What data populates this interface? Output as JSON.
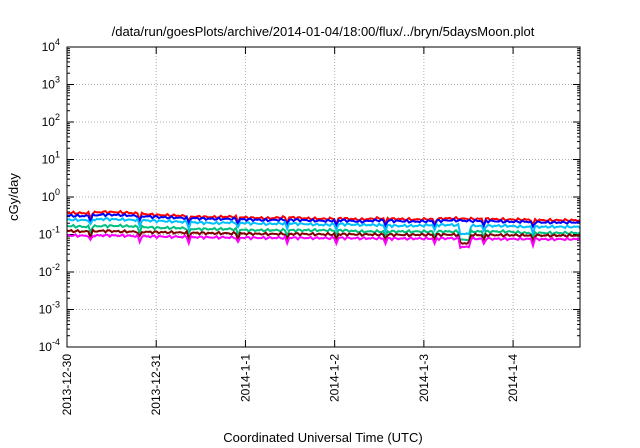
{
  "chart_data": {
    "type": "line",
    "title": "/data/run/goesPlots/archive/2014-01-04/18:00/flux/../bryn/5daysMoon.plot",
    "xlabel": "Coordinated Universal Time (UTC)",
    "ylabel": "cGy/day",
    "yscale": "log",
    "ylim": [
      0.0001,
      10000
    ],
    "y_ticks": [
      {
        "base": "10",
        "exp": "-4",
        "value": 0.0001
      },
      {
        "base": "10",
        "exp": "-3",
        "value": 0.001
      },
      {
        "base": "10",
        "exp": "-2",
        "value": 0.01
      },
      {
        "base": "10",
        "exp": "-1",
        "value": 0.1
      },
      {
        "base": "10",
        "exp": "0",
        "value": 1
      },
      {
        "base": "10",
        "exp": "1",
        "value": 10
      },
      {
        "base": "10",
        "exp": "2",
        "value": 100
      },
      {
        "base": "10",
        "exp": "3",
        "value": 1000
      },
      {
        "base": "10",
        "exp": "4",
        "value": 10000
      }
    ],
    "x_ticks": [
      "2013-12-30",
      "2013-12-31",
      "2014-1-1",
      "2014-1-2",
      "2014-1-3",
      "2014-1-4"
    ],
    "xlim": [
      "2013-12-30 00:00",
      "2014-01-04 18:00"
    ],
    "grid": true,
    "series": [
      {
        "color": "#ff0000",
        "values": [
          0.38,
          0.37,
          0.4,
          0.39,
          0.36,
          0.33,
          0.32,
          0.3,
          0.29,
          0.3,
          0.28,
          0.27,
          0.29,
          0.27,
          0.26,
          0.27,
          0.25,
          0.27,
          0.26,
          0.25,
          0.26,
          0.27,
          0.26,
          0.26,
          0.25,
          0.25,
          0.24,
          0.24,
          0.24
        ]
      },
      {
        "color": "#0000ff",
        "values": [
          0.32,
          0.31,
          0.34,
          0.33,
          0.31,
          0.29,
          0.28,
          0.27,
          0.26,
          0.26,
          0.25,
          0.24,
          0.25,
          0.24,
          0.23,
          0.24,
          0.22,
          0.24,
          0.23,
          0.22,
          0.23,
          0.24,
          0.23,
          0.23,
          0.22,
          0.22,
          0.21,
          0.21,
          0.21
        ]
      },
      {
        "color": "#00bfff",
        "values": [
          0.25,
          0.24,
          0.26,
          0.25,
          0.24,
          0.23,
          0.22,
          0.21,
          0.2,
          0.21,
          0.2,
          0.19,
          0.2,
          0.19,
          0.18,
          0.19,
          0.18,
          0.18,
          0.17,
          0.17,
          0.18,
          0.18,
          0.17,
          0.17,
          0.17,
          0.16,
          0.16,
          0.16,
          0.16
        ]
      },
      {
        "color": "#00c080",
        "values": [
          0.17,
          0.16,
          0.17,
          0.17,
          0.16,
          0.15,
          0.15,
          0.14,
          0.14,
          0.14,
          0.13,
          0.13,
          0.13,
          0.13,
          0.13,
          0.13,
          0.12,
          0.12,
          0.12,
          0.12,
          0.12,
          0.12,
          0.12,
          0.12,
          0.12,
          0.11,
          0.11,
          0.11,
          0.11
        ]
      },
      {
        "color": "#800000",
        "values": [
          0.125,
          0.12,
          0.125,
          0.12,
          0.118,
          0.115,
          0.113,
          0.11,
          0.108,
          0.107,
          0.105,
          0.103,
          0.104,
          0.103,
          0.101,
          0.102,
          0.1,
          0.1,
          0.098,
          0.098,
          0.099,
          0.099,
          0.097,
          0.097,
          0.096,
          0.095,
          0.094,
          0.094,
          0.094
        ]
      },
      {
        "color": "#ff00ff",
        "values": [
          0.095,
          0.092,
          0.095,
          0.093,
          0.09,
          0.088,
          0.087,
          0.085,
          0.084,
          0.083,
          0.082,
          0.081,
          0.082,
          0.081,
          0.08,
          0.081,
          0.079,
          0.079,
          0.078,
          0.078,
          0.078,
          0.079,
          0.077,
          0.077,
          0.076,
          0.076,
          0.075,
          0.075,
          0.075
        ]
      }
    ]
  }
}
